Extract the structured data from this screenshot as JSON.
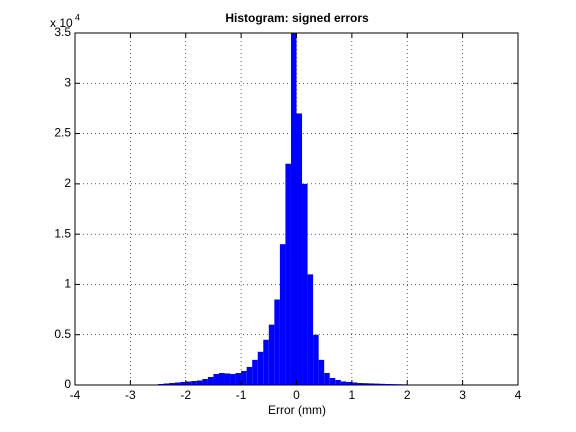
{
  "chart_data": {
    "type": "histogram",
    "title": "Histogram: signed errors",
    "x_label": "Error (mm)",
    "y_multiplier": {
      "base": "x 10",
      "exponent": "4"
    },
    "color": "#0000ff",
    "grid": true,
    "xlim": [
      -4,
      4
    ],
    "xticks": [
      -4,
      -3,
      -2,
      -1,
      0,
      1,
      2,
      3,
      4
    ],
    "ylim": [
      0,
      35000
    ],
    "yticks": [
      {
        "value": 0,
        "label": "0"
      },
      {
        "value": 5000,
        "label": "0.5"
      },
      {
        "value": 10000,
        "label": "1"
      },
      {
        "value": 15000,
        "label": "1.5"
      },
      {
        "value": 20000,
        "label": "2"
      },
      {
        "value": 25000,
        "label": "2.5"
      },
      {
        "value": 30000,
        "label": "3"
      },
      {
        "value": 35000,
        "label": "3.5"
      }
    ],
    "bins": [
      -2.6,
      -2.5,
      -2.4,
      -2.3,
      -2.2,
      -2.1,
      -2.0,
      -1.9,
      -1.8,
      -1.7,
      -1.6,
      -1.5,
      -1.4,
      -1.3,
      -1.2,
      -1.1,
      -1.0,
      -0.9,
      -0.8,
      -0.7,
      -0.6,
      -0.5,
      -0.4,
      -0.3,
      -0.2,
      -0.1,
      0.0,
      0.1,
      0.2,
      0.3,
      0.4,
      0.5,
      0.6,
      0.7,
      0.8,
      0.9,
      1.0,
      1.1,
      1.2,
      1.3,
      1.4,
      1.5,
      1.6,
      1.7,
      1.8,
      1.9,
      2.0,
      2.1
    ],
    "values": [
      50,
      100,
      150,
      200,
      250,
      300,
      350,
      400,
      450,
      600,
      800,
      1100,
      1200,
      1150,
      1100,
      1200,
      1400,
      1800,
      2500,
      3300,
      4500,
      6000,
      8500,
      14000,
      22000,
      35000,
      27000,
      20000,
      11000,
      5000,
      2500,
      1200,
      700,
      500,
      350,
      300,
      250,
      200,
      180,
      160,
      140,
      120,
      100,
      90,
      80,
      70,
      50
    ]
  }
}
